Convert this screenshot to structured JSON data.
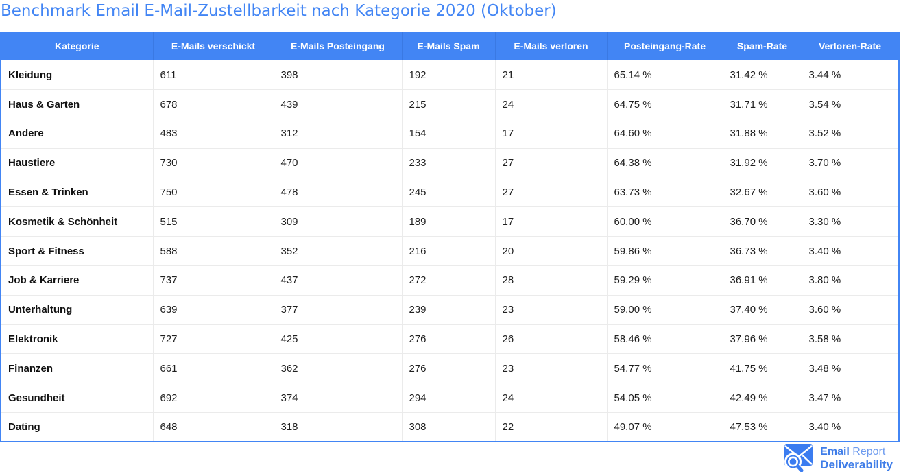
{
  "title": "Benchmark Email E-Mail-Zustellbarkeit nach Kategorie 2020 (Oktober)",
  "chart_data": {
    "type": "table",
    "columns": [
      "Kategorie",
      "E-Mails verschickt",
      "E-Mails Posteingang",
      "E-Mails Spam",
      "E-Mails verloren",
      "Posteingang-Rate",
      "Spam-Rate",
      "Verloren-Rate"
    ],
    "rows": [
      [
        "Kleidung",
        "611",
        "398",
        "192",
        "21",
        "65.14 %",
        "31.42 %",
        "3.44 %"
      ],
      [
        "Haus & Garten",
        "678",
        "439",
        "215",
        "24",
        "64.75 %",
        "31.71 %",
        "3.54 %"
      ],
      [
        "Andere",
        "483",
        "312",
        "154",
        "17",
        "64.60 %",
        "31.88 %",
        "3.52 %"
      ],
      [
        "Haustiere",
        "730",
        "470",
        "233",
        "27",
        "64.38 %",
        "31.92 %",
        "3.70 %"
      ],
      [
        "Essen & Trinken",
        "750",
        "478",
        "245",
        "27",
        "63.73 %",
        "32.67 %",
        "3.60 %"
      ],
      [
        "Kosmetik & Schönheit",
        "515",
        "309",
        "189",
        "17",
        "60.00 %",
        "36.70 %",
        "3.30 %"
      ],
      [
        "Sport & Fitness",
        "588",
        "352",
        "216",
        "20",
        "59.86 %",
        "36.73 %",
        "3.40 %"
      ],
      [
        "Job & Karriere",
        "737",
        "437",
        "272",
        "28",
        "59.29 %",
        "36.91 %",
        "3.80 %"
      ],
      [
        "Unterhaltung",
        "639",
        "377",
        "239",
        "23",
        "59.00 %",
        "37.40 %",
        "3.60 %"
      ],
      [
        "Elektronik",
        "727",
        "425",
        "276",
        "26",
        "58.46 %",
        "37.96 %",
        "3.58 %"
      ],
      [
        "Finanzen",
        "661",
        "362",
        "276",
        "23",
        "54.77 %",
        "41.75 %",
        "3.48 %"
      ],
      [
        "Gesundheit",
        "692",
        "374",
        "294",
        "24",
        "54.05 %",
        "42.49 %",
        "3.47 %"
      ],
      [
        "Dating",
        "648",
        "318",
        "308",
        "22",
        "49.07 %",
        "47.53 %",
        "3.40 %"
      ]
    ],
    "title": "Benchmark Email E-Mail-Zustellbarkeit nach Kategorie 2020 (Oktober)",
    "grid": true,
    "legend": "none"
  },
  "logo": {
    "icon": "envelope-magnifier-icon",
    "line1_bold": "Email",
    "line1_regular": " Report",
    "line2": "Deliverability"
  },
  "colors": {
    "accent_blue": "#4285F4",
    "title_blue": "#4285F4",
    "header_bg": "#4285F4",
    "header_text": "#FFFFFF",
    "grid_line": "#EBEBEB",
    "body_text": "#1F1F1F",
    "logo_blue_bold": "#3F7DE8",
    "logo_blue_light": "#6D9BEF"
  }
}
